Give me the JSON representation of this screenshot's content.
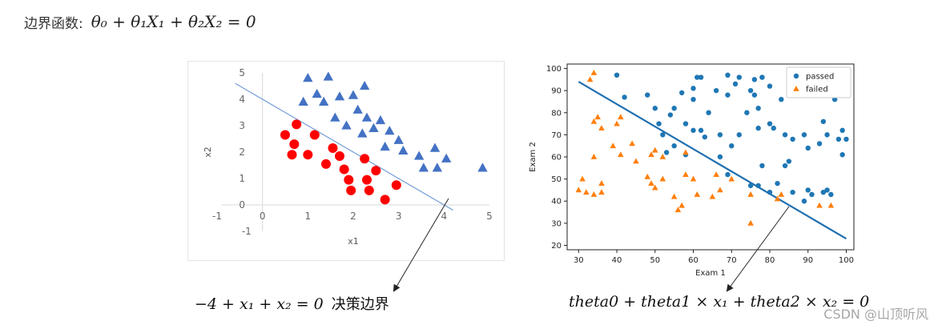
{
  "heading": {
    "label": "边界函数:",
    "formula": "θ₀ + θ₁X₁ + θ₂X₂ = 0"
  },
  "left_caption": {
    "formula": "−4 + x₁ + x₂ = 0",
    "text": "决策边界"
  },
  "right_caption": {
    "formula": "theta0 + theta1 × x₁ + theta2 × x₂ = 0"
  },
  "watermark": "CSDN @山顶听风",
  "colors": {
    "positive": "#4472c4",
    "negative": "#ff0000",
    "boundary_left": "#7da4d9",
    "passed": "#1f77b4",
    "failed": "#ff7f0e",
    "boundary_right": "#1f6fb0"
  },
  "chart_data": [
    {
      "type": "scatter",
      "title": "",
      "xlabel": "x1",
      "ylabel": "x2",
      "xlim": [
        -1,
        5
      ],
      "ylim": [
        -1,
        5
      ],
      "xticks": [
        "-1",
        "0",
        "1",
        "2",
        "3",
        "4",
        "5"
      ],
      "yticks": [
        "-1",
        "0",
        "1",
        "2",
        "3",
        "4",
        "5"
      ],
      "boundary": {
        "equation": "x2 = 4 - x1",
        "x": [
          -0.6,
          4.2
        ]
      },
      "series": [
        {
          "marker": "triangle",
          "points": [
            [
              1.0,
              4.8
            ],
            [
              1.45,
              4.85
            ],
            [
              2.25,
              4.5
            ],
            [
              1.2,
              4.2
            ],
            [
              1.7,
              4.1
            ],
            [
              0.9,
              3.9
            ],
            [
              1.35,
              3.9
            ],
            [
              2.0,
              4.15
            ],
            [
              2.1,
              3.6
            ],
            [
              1.6,
              3.3
            ],
            [
              1.85,
              3.0
            ],
            [
              2.3,
              3.3
            ],
            [
              2.6,
              3.2
            ],
            [
              2.45,
              2.9
            ],
            [
              2.8,
              2.8
            ],
            [
              2.2,
              2.7
            ],
            [
              3.0,
              2.45
            ],
            [
              2.7,
              2.2
            ],
            [
              3.1,
              2.05
            ],
            [
              3.45,
              1.85
            ],
            [
              3.8,
              2.15
            ],
            [
              4.05,
              1.75
            ],
            [
              3.55,
              1.4
            ],
            [
              3.85,
              1.4
            ],
            [
              4.85,
              1.4
            ]
          ]
        },
        {
          "marker": "circle",
          "points": [
            [
              0.75,
              3.05
            ],
            [
              0.5,
              2.65
            ],
            [
              1.15,
              2.65
            ],
            [
              0.7,
              2.3
            ],
            [
              1.55,
              2.15
            ],
            [
              0.65,
              1.9
            ],
            [
              1.0,
              1.9
            ],
            [
              1.7,
              1.85
            ],
            [
              2.25,
              1.75
            ],
            [
              1.4,
              1.55
            ],
            [
              1.8,
              1.35
            ],
            [
              2.5,
              1.3
            ],
            [
              1.9,
              0.95
            ],
            [
              2.3,
              0.95
            ],
            [
              2.95,
              0.75
            ],
            [
              1.95,
              0.55
            ],
            [
              2.35,
              0.55
            ],
            [
              2.7,
              0.2
            ]
          ]
        }
      ]
    },
    {
      "type": "scatter",
      "title": "",
      "xlabel": "Exam 1",
      "ylabel": "Exam 2",
      "xlim": [
        27,
        102
      ],
      "ylim": [
        18,
        102
      ],
      "xticks": [
        30,
        40,
        50,
        60,
        70,
        80,
        90,
        100
      ],
      "yticks": [
        20,
        30,
        40,
        50,
        60,
        70,
        80,
        90,
        100
      ],
      "legend": {
        "position": "top-right",
        "entries": [
          "passed",
          "failed"
        ]
      },
      "boundary": {
        "x": [
          30,
          100
        ],
        "y": [
          94,
          23
        ]
      },
      "series": [
        {
          "name": "passed",
          "marker": "circle",
          "points": [
            [
              40,
              97
            ],
            [
              61,
              96
            ],
            [
              62,
              96
            ],
            [
              69,
              97
            ],
            [
              72,
              96
            ],
            [
              76,
              95
            ],
            [
              78,
              96
            ],
            [
              80,
              92
            ],
            [
              71,
              93
            ],
            [
              86,
              94
            ],
            [
              83,
              86
            ],
            [
              60,
              91
            ],
            [
              66,
              90
            ],
            [
              69,
              88
            ],
            [
              75,
              90
            ],
            [
              76,
              88
            ],
            [
              57,
              89
            ],
            [
              48,
              88
            ],
            [
              42,
              87
            ],
            [
              50,
              82
            ],
            [
              55,
              82
            ],
            [
              60,
              86
            ],
            [
              64,
              80
            ],
            [
              77,
              82
            ],
            [
              74,
              80
            ],
            [
              54,
              79
            ],
            [
              51,
              75
            ],
            [
              58,
              75
            ],
            [
              60,
              72
            ],
            [
              62,
              72
            ],
            [
              63,
              69
            ],
            [
              67,
              70
            ],
            [
              72,
              70
            ],
            [
              70,
              65
            ],
            [
              77,
              73
            ],
            [
              80,
              75
            ],
            [
              81,
              73
            ],
            [
              84,
              70
            ],
            [
              86,
              68
            ],
            [
              94,
              76
            ],
            [
              95,
              70
            ],
            [
              93,
              66
            ],
            [
              89,
              70
            ],
            [
              90,
              64
            ],
            [
              98,
              68
            ],
            [
              99,
              72
            ],
            [
              100,
              68
            ],
            [
              99,
              61
            ],
            [
              94,
              97
            ],
            [
              90,
              88
            ],
            [
              97,
              86
            ],
            [
              55,
              65
            ],
            [
              53,
              62
            ],
            [
              58,
              61
            ],
            [
              52,
              70
            ],
            [
              67,
              60
            ],
            [
              78,
              56
            ],
            [
              84,
              56
            ],
            [
              85,
              58
            ],
            [
              69,
              52
            ],
            [
              75,
              47
            ],
            [
              77,
              47
            ],
            [
              80,
              44
            ],
            [
              82,
              48
            ],
            [
              86,
              44
            ],
            [
              90,
              45
            ],
            [
              94,
              44
            ],
            [
              96,
              43
            ],
            [
              89,
              40
            ],
            [
              95,
              45
            ],
            [
              91,
              43
            ]
          ]
        },
        {
          "name": "failed",
          "marker": "triangle",
          "points": [
            [
              34,
              98
            ],
            [
              33,
              95
            ],
            [
              35,
              78
            ],
            [
              34,
              76
            ],
            [
              36,
              73
            ],
            [
              40,
              75
            ],
            [
              41,
              78
            ],
            [
              44,
              66
            ],
            [
              39,
              65
            ],
            [
              45,
              58
            ],
            [
              34,
              60
            ],
            [
              41,
              61
            ],
            [
              49,
              61
            ],
            [
              50,
              63
            ],
            [
              52,
              60
            ],
            [
              58,
              62
            ],
            [
              48,
              51
            ],
            [
              49,
              48
            ],
            [
              50,
              46
            ],
            [
              52,
              50
            ],
            [
              58,
              52
            ],
            [
              60,
              50
            ],
            [
              66,
              52
            ],
            [
              70,
              50
            ],
            [
              67,
              45
            ],
            [
              65,
              42
            ],
            [
              61,
              43
            ],
            [
              57,
              38
            ],
            [
              56,
              36
            ],
            [
              31,
              50
            ],
            [
              32,
              44
            ],
            [
              34,
              43
            ],
            [
              36,
              44
            ],
            [
              36,
              48
            ],
            [
              30,
              45
            ],
            [
              75,
              43
            ],
            [
              82,
              41
            ],
            [
              75,
              30
            ],
            [
              83,
              43
            ],
            [
              93,
              38
            ],
            [
              96,
              38
            ],
            [
              55,
              42
            ]
          ]
        }
      ]
    }
  ]
}
